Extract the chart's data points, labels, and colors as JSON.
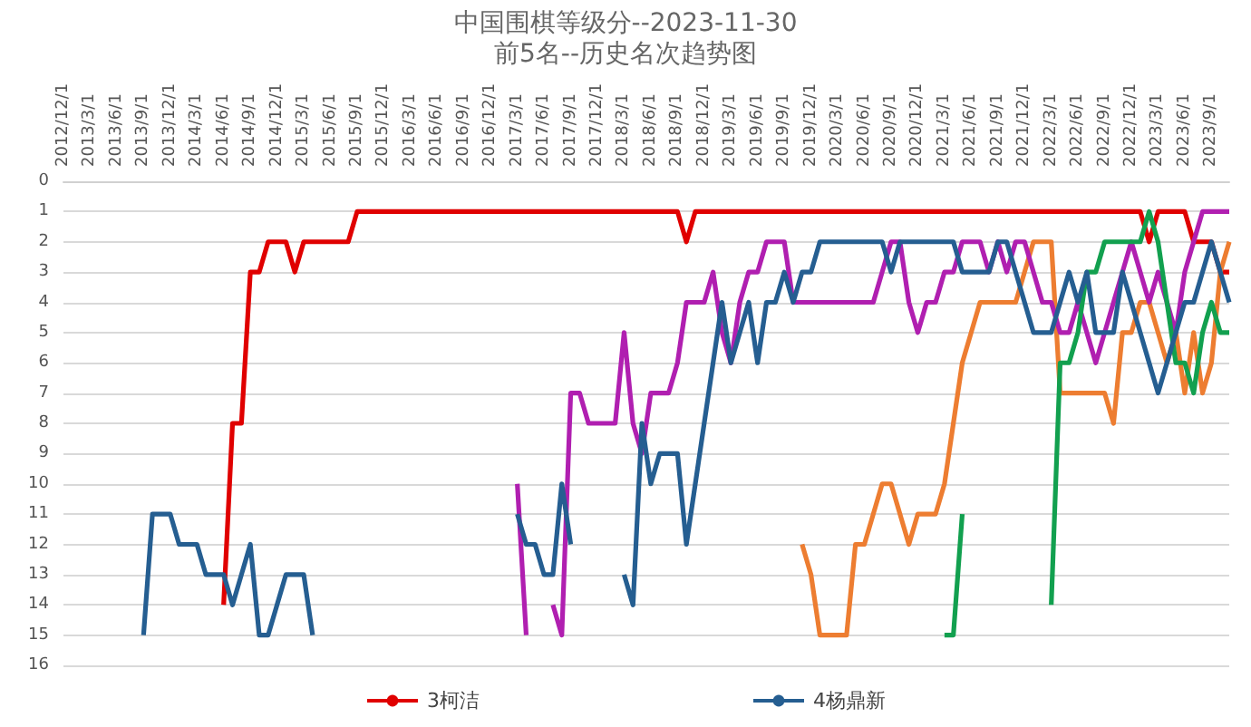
{
  "chart_data": {
    "type": "line",
    "title": "中国围棋等级分--2023-11-30",
    "subtitle": "前5名--历史名次趋势图",
    "categories": [
      "2012/12/1",
      null,
      null,
      "2013/3/1",
      null,
      null,
      "2013/6/1",
      null,
      null,
      "2013/9/1",
      null,
      null,
      "2013/12/1",
      null,
      null,
      "2014/3/1",
      null,
      null,
      "2014/6/1",
      null,
      null,
      "2014/9/1",
      null,
      null,
      "2014/12/1",
      null,
      null,
      "2015/3/1",
      null,
      null,
      "2015/6/1",
      null,
      null,
      "2015/9/1",
      null,
      null,
      "2015/12/1",
      null,
      null,
      "2016/3/1",
      null,
      null,
      "2016/6/1",
      null,
      null,
      "2016/9/1",
      null,
      null,
      "2016/12/1",
      null,
      null,
      "2017/3/1",
      null,
      null,
      "2017/6/1",
      null,
      null,
      "2017/9/1",
      null,
      null,
      "2017/12/1",
      null,
      null,
      "2018/3/1",
      null,
      null,
      "2018/6/1",
      null,
      null,
      "2018/9/1",
      null,
      null,
      "2018/12/1",
      null,
      null,
      "2019/3/1",
      null,
      null,
      "2019/6/1",
      null,
      null,
      "2019/9/1",
      null,
      null,
      "2019/12/1",
      null,
      null,
      "2020/3/1",
      null,
      null,
      "2020/6/1",
      null,
      null,
      "2020/9/1",
      null,
      null,
      "2020/12/1",
      null,
      null,
      "2021/3/1",
      null,
      null,
      "2021/6/1",
      null,
      null,
      "2021/9/1",
      null,
      null,
      "2021/12/1",
      null,
      null,
      "2022/3/1",
      null,
      null,
      "2022/6/1",
      null,
      null,
      "2022/9/1",
      null,
      null,
      "2022/12/1",
      null,
      null,
      "2023/3/1",
      null,
      null,
      "2023/6/1",
      null,
      null,
      "2023/9/1",
      null,
      null
    ],
    "series": [
      {
        "name": "3柯洁",
        "color": "#e00000",
        "values": [
          null,
          null,
          null,
          null,
          null,
          null,
          null,
          null,
          null,
          null,
          null,
          null,
          null,
          null,
          null,
          null,
          null,
          null,
          14,
          8,
          8,
          3,
          3,
          2,
          2,
          2,
          3,
          2,
          2,
          2,
          2,
          2,
          2,
          1,
          1,
          1,
          1,
          1,
          1,
          1,
          1,
          1,
          1,
          1,
          1,
          1,
          1,
          1,
          1,
          1,
          1,
          1,
          1,
          1,
          1,
          1,
          1,
          1,
          1,
          1,
          1,
          1,
          1,
          1,
          1,
          1,
          1,
          1,
          1,
          1,
          2,
          1,
          1,
          1,
          1,
          1,
          1,
          1,
          1,
          1,
          1,
          1,
          1,
          1,
          1,
          1,
          1,
          1,
          1,
          1,
          1,
          1,
          1,
          1,
          1,
          1,
          1,
          1,
          1,
          1,
          1,
          1,
          1,
          1,
          1,
          1,
          1,
          1,
          1,
          1,
          1,
          1,
          1,
          1,
          1,
          1,
          1,
          1,
          1,
          1,
          1,
          1,
          2,
          1,
          1,
          1,
          1,
          2,
          2,
          2,
          3,
          3
        ]
      },
      {
        "color": "#ed7d31",
        "values": [
          null,
          null,
          null,
          null,
          null,
          null,
          null,
          null,
          null,
          null,
          null,
          null,
          null,
          null,
          null,
          null,
          null,
          null,
          null,
          null,
          null,
          null,
          null,
          null,
          null,
          null,
          null,
          null,
          null,
          null,
          null,
          null,
          null,
          null,
          null,
          null,
          null,
          null,
          null,
          null,
          null,
          null,
          null,
          null,
          null,
          null,
          null,
          null,
          null,
          null,
          null,
          null,
          null,
          null,
          null,
          null,
          null,
          null,
          null,
          null,
          null,
          null,
          null,
          null,
          null,
          null,
          null,
          null,
          null,
          null,
          null,
          null,
          null,
          null,
          null,
          null,
          null,
          null,
          null,
          null,
          null,
          null,
          null,
          12,
          13,
          15,
          15,
          15,
          15,
          12,
          12,
          11,
          10,
          10,
          11,
          12,
          11,
          11,
          11,
          10,
          8,
          6,
          5,
          4,
          4,
          4,
          4,
          4,
          3,
          2,
          2,
          2,
          7,
          7,
          7,
          7,
          7,
          7,
          8,
          5,
          5,
          4,
          4,
          5,
          6,
          5,
          7,
          5,
          7,
          6,
          3,
          2
        ]
      },
      {
        "color": "#b01fb0",
        "values": [
          null,
          null,
          null,
          null,
          null,
          null,
          null,
          null,
          null,
          null,
          null,
          null,
          null,
          null,
          null,
          null,
          null,
          null,
          null,
          null,
          null,
          null,
          null,
          null,
          null,
          null,
          null,
          null,
          null,
          null,
          null,
          null,
          null,
          null,
          null,
          null,
          null,
          null,
          null,
          null,
          null,
          null,
          null,
          null,
          null,
          null,
          null,
          null,
          null,
          null,
          null,
          10,
          15,
          null,
          null,
          14,
          15,
          7,
          7,
          8,
          8,
          8,
          8,
          5,
          8,
          9,
          7,
          7,
          7,
          6,
          4,
          4,
          4,
          3,
          5,
          6,
          4,
          3,
          3,
          2,
          2,
          2,
          4,
          4,
          4,
          4,
          4,
          4,
          4,
          4,
          4,
          4,
          3,
          2,
          2,
          4,
          5,
          4,
          4,
          3,
          3,
          2,
          2,
          2,
          3,
          2,
          3,
          2,
          2,
          3,
          4,
          4,
          5,
          5,
          4,
          5,
          6,
          5,
          4,
          3,
          2,
          3,
          4,
          3,
          4,
          5,
          3,
          2,
          1,
          1,
          1,
          1
        ]
      },
      {
        "color": "#12a04f",
        "values": [
          null,
          null,
          null,
          null,
          null,
          null,
          null,
          null,
          null,
          null,
          null,
          null,
          null,
          null,
          null,
          null,
          null,
          null,
          null,
          null,
          null,
          null,
          null,
          null,
          null,
          null,
          null,
          null,
          null,
          null,
          null,
          null,
          null,
          null,
          null,
          null,
          null,
          null,
          null,
          null,
          null,
          null,
          null,
          null,
          null,
          null,
          null,
          null,
          null,
          null,
          null,
          null,
          null,
          null,
          null,
          null,
          null,
          null,
          null,
          null,
          null,
          null,
          null,
          null,
          null,
          null,
          null,
          null,
          null,
          null,
          null,
          null,
          null,
          null,
          null,
          null,
          null,
          null,
          null,
          null,
          null,
          null,
          null,
          null,
          null,
          null,
          null,
          null,
          null,
          null,
          null,
          null,
          null,
          null,
          null,
          null,
          null,
          null,
          null,
          15,
          15,
          11,
          null,
          null,
          null,
          null,
          null,
          null,
          null,
          null,
          null,
          14,
          6,
          6,
          5,
          3,
          3,
          2,
          2,
          2,
          2,
          2,
          1,
          2,
          4,
          6,
          6,
          7,
          5,
          4,
          5,
          5
        ]
      },
      {
        "name": "4杨鼎新",
        "color": "#255e91",
        "values": [
          null,
          null,
          null,
          null,
          null,
          null,
          null,
          null,
          null,
          15,
          11,
          11,
          11,
          12,
          12,
          12,
          13,
          13,
          13,
          14,
          13,
          12,
          15,
          15,
          14,
          13,
          13,
          13,
          15,
          null,
          null,
          null,
          null,
          null,
          null,
          null,
          null,
          null,
          null,
          null,
          null,
          null,
          null,
          null,
          null,
          null,
          null,
          null,
          null,
          null,
          null,
          11,
          12,
          12,
          13,
          13,
          10,
          12,
          null,
          null,
          null,
          null,
          null,
          13,
          14,
          8,
          10,
          9,
          9,
          9,
          12,
          10,
          8,
          6,
          4,
          6,
          5,
          4,
          6,
          4,
          4,
          3,
          4,
          3,
          3,
          2,
          2,
          2,
          2,
          2,
          2,
          2,
          2,
          3,
          2,
          2,
          2,
          2,
          2,
          2,
          2,
          3,
          3,
          3,
          3,
          2,
          2,
          3,
          4,
          5,
          5,
          5,
          4,
          3,
          4,
          3,
          5,
          5,
          5,
          3,
          4,
          5,
          6,
          7,
          6,
          5,
          4,
          4,
          3,
          2,
          3,
          4
        ]
      }
    ],
    "ylim": [
      16,
      0
    ],
    "yticks": [
      0,
      1,
      2,
      3,
      4,
      5,
      6,
      7,
      8,
      9,
      10,
      11,
      12,
      13,
      14,
      15,
      16
    ],
    "grid": "y",
    "legend": "bottom",
    "marker": "none"
  }
}
